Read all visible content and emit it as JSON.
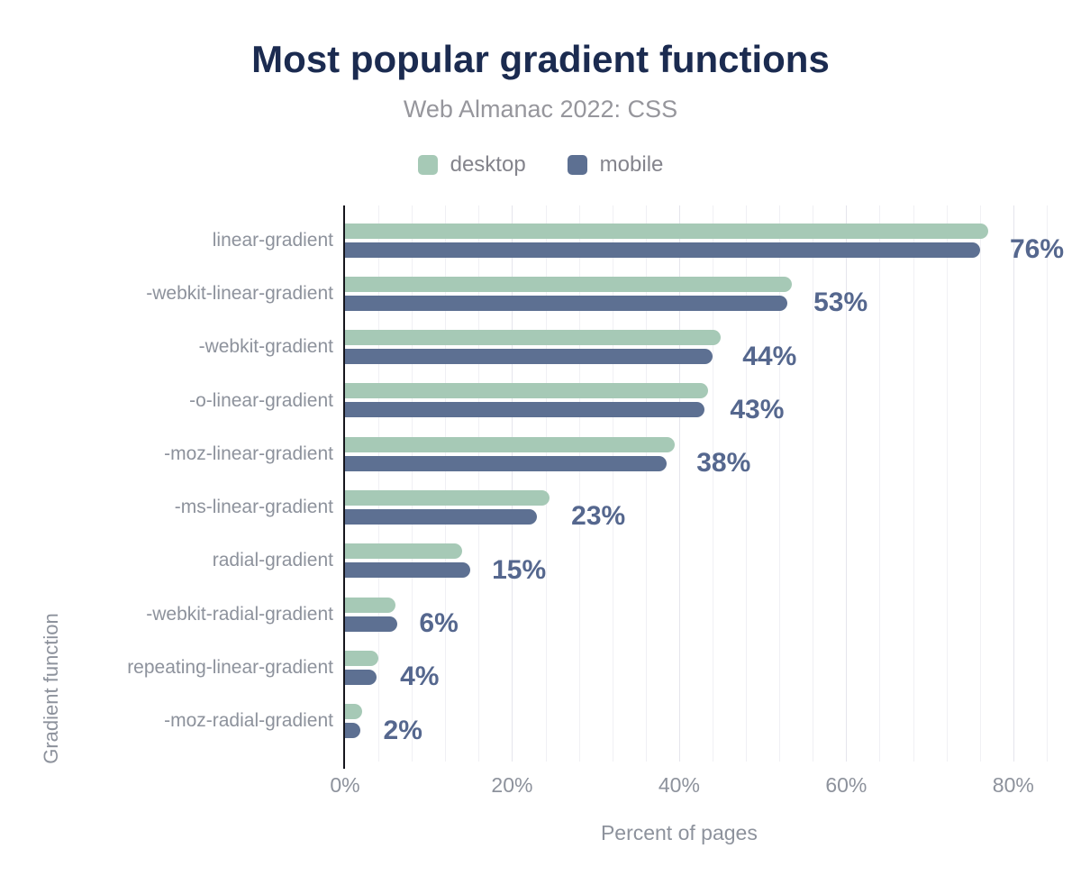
{
  "title": "Most popular gradient functions",
  "subtitle": "Web Almanac 2022: CSS",
  "legend": {
    "items": [
      {
        "label": "desktop",
        "color": "#a6c9b6"
      },
      {
        "label": "mobile",
        "color": "#5d7092"
      }
    ]
  },
  "chart_data": {
    "type": "bar",
    "orientation": "horizontal",
    "title": "Most popular gradient functions",
    "subtitle": "Web Almanac 2022: CSS",
    "xlabel": "Percent of pages",
    "ylabel": "Gradient function",
    "categories": [
      "linear-gradient",
      "-webkit-linear-gradient",
      "-webkit-gradient",
      "-o-linear-gradient",
      "-moz-linear-gradient",
      "-ms-linear-gradient",
      "radial-gradient",
      "-webkit-radial-gradient",
      "repeating-linear-gradient",
      "-moz-radial-gradient"
    ],
    "series": [
      {
        "name": "desktop",
        "color": "#a6c9b6",
        "values": [
          77,
          53.5,
          45,
          43.5,
          39.5,
          24.5,
          14,
          6,
          4,
          2
        ]
      },
      {
        "name": "mobile",
        "color": "#5d7092",
        "values": [
          76,
          53,
          44,
          43,
          38.5,
          23,
          15,
          6.3,
          3.8,
          1.8
        ]
      }
    ],
    "value_labels": [
      "76%",
      "53%",
      "44%",
      "43%",
      "38%",
      "23%",
      "15%",
      "6%",
      "4%",
      "2%"
    ],
    "x_ticks": [
      "0%",
      "20%",
      "40%",
      "60%",
      "80%"
    ],
    "x_tick_values": [
      0,
      20,
      40,
      60,
      80
    ],
    "xmax": 86.6,
    "grid_step": 4,
    "grid_max": 84,
    "grid_on": true,
    "legend_position": "top",
    "colors": {
      "title": "#1b2b50",
      "subtitle": "#96969c",
      "axis_text": "#8d929c",
      "value_label": "#55678e",
      "axis_line": "#15151c",
      "grid_minor": "#f0f0f4",
      "grid_major": "#e5e5ec"
    }
  }
}
